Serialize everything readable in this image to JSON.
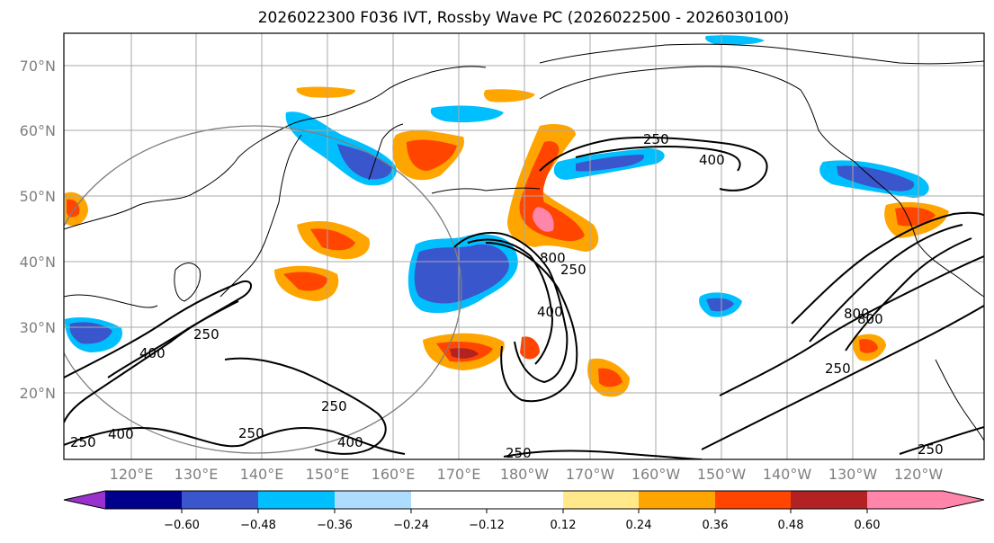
{
  "title": "2026022300 F036 IVT, Rossby Wave PC (2026022500 - 2026030100)",
  "map": {
    "lat_labels": [
      "70°N",
      "60°N",
      "50°N",
      "40°N",
      "30°N",
      "20°N"
    ],
    "lon_labels": [
      "120°E",
      "130°E",
      "140°E",
      "150°E",
      "160°E",
      "170°E",
      "180°W",
      "170°W",
      "160°W",
      "150°W",
      "140°W",
      "130°W",
      "120°W"
    ],
    "contour_labels": [
      "250",
      "400",
      "250",
      "400",
      "250",
      "400",
      "250",
      "400",
      "800",
      "250",
      "250",
      "400",
      "800",
      "800",
      "250",
      "250",
      "250"
    ]
  },
  "colorbar": {
    "colors": [
      "#9932cc",
      "#00008b",
      "#3a56cc",
      "#00bfff",
      "#aedcff",
      "#ffffff",
      "#ffe98a",
      "#ffa500",
      "#ff4500",
      "#b22222",
      "#ff85aa"
    ],
    "tick_labels": [
      "−0.60",
      "−0.48",
      "−0.36",
      "−0.24",
      "−0.12",
      "0.12",
      "0.24",
      "0.36",
      "0.48",
      "0.60"
    ]
  }
}
